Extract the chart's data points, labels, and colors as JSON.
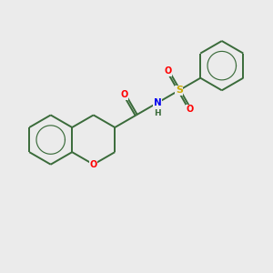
{
  "background_color": "#ebebeb",
  "bond_color": "#3a6b3a",
  "bond_width": 1.4,
  "atom_colors": {
    "O": "#ff0000",
    "N": "#0000ee",
    "S": "#ccaa00",
    "C": "#3a6b3a"
  },
  "fig_width": 3.0,
  "fig_height": 3.0,
  "dpi": 100
}
